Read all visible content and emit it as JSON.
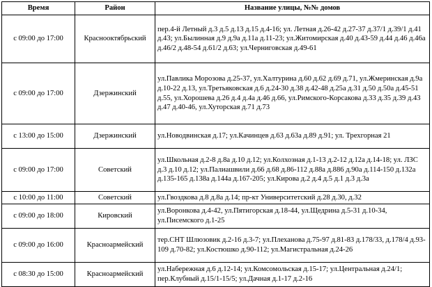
{
  "table": {
    "headers": {
      "time": "Время",
      "district": "Район",
      "streets": "Название улицы, №№ домов"
    },
    "rows": [
      {
        "time": "с 09:00 до 17:00",
        "district": "Краснооктябрьский",
        "streets": "пер.4-й Летный д.3 д.5 д.13 д.15 д.4-16; ул. Летная д.26-42 д.27-37 д.37/1 д.39/1 д.41 д.43; ул.Былинная д.9 д.9а д.11а д.11-23; ул.Житомирская д.40 д.43-59 д.44 д.46 д.46а д.46/2 д.48-54 д.61/2 д.63; ул.Черниговская д.49-61"
      },
      {
        "time": "с 09:00 до 17:00",
        "district": "Дзержинский",
        "streets": "ул.Павлика Морозова д.25-37, ул.Халтурина д.60 д.62 д.69 д.71, ул.Жмеринская д.9а д.10-22 д.13, ул.Третьяковская д.6 д.24-30 д.38 д.42-48 д.25а д.31 д.50 д.50а д.45-51 д.55, ул.Хорошева д.26 д.4 д.4а д.46 д.66, ул.Римского-Корсакова д.33 д.35 д.39 д.43 д.47 д.40-46, ул.Хуторская д.71 д.73"
      },
      {
        "time": "с 13:00 до 15:00",
        "district": "Дзержинский",
        "streets": "ул.Новодвинская д.17; ул.Качинцев д.63 д.63а д.89 д.91; ул. Трехгорная 21"
      },
      {
        "time": "с 09:00 до 17:00",
        "district": "Советский",
        "streets": "ул.Школьная д.2-8 д.8а д.10 д.12; ул.Колхозная д.1-13 д.2-12 д.12а д.14-18; ул. ЛЗС д.3 д.10 д.12; ул.Палиашвили д.66 д.68 д.86-112 д.88а д.886 д.90а д.114-150 д.132а д.135-165 д.138а д.144а д.167-205; ул.Кирова д.2 д.4 д.5 д.1 д.3 д.3а"
      },
      {
        "time": "с 10:00 до 11:00",
        "district": "Советский",
        "streets": "ул.Гвоздкова д.8 д.8а д.14; пр-кт Университетский д.28 д.30, д.32"
      },
      {
        "time": "с 09:00 до 18:00",
        "district": "Кировский",
        "streets": "ул.Воронкова д.4-42, ул.Пятигорская д.18-44, ул.Щедрина д.5-31 д.10-34, ул.Писемского д.1-25"
      },
      {
        "time": "с 09:00 до 16:00",
        "district": "Красноармейский",
        "streets": "тер.СНТ Шлюзовик д.2-16 д.3-7; ул.Плеханова д.75-97 д.81-83 д.178/33, д.178/4 д.93-109 д.70-82; ул.Костюшко д.90-112; ул.Магистральная д.24-26"
      },
      {
        "time": "с 08:30 до 15:00",
        "district": "Красноармейский",
        "streets": "ул.Набережная д.6 д.12-14; ул.Комсомольская д.15-17; ул.Центральная д.24/1; пер.Клубный д.15/1-15/5; ул.Дачная д.1-17 д.2-16"
      }
    ]
  }
}
